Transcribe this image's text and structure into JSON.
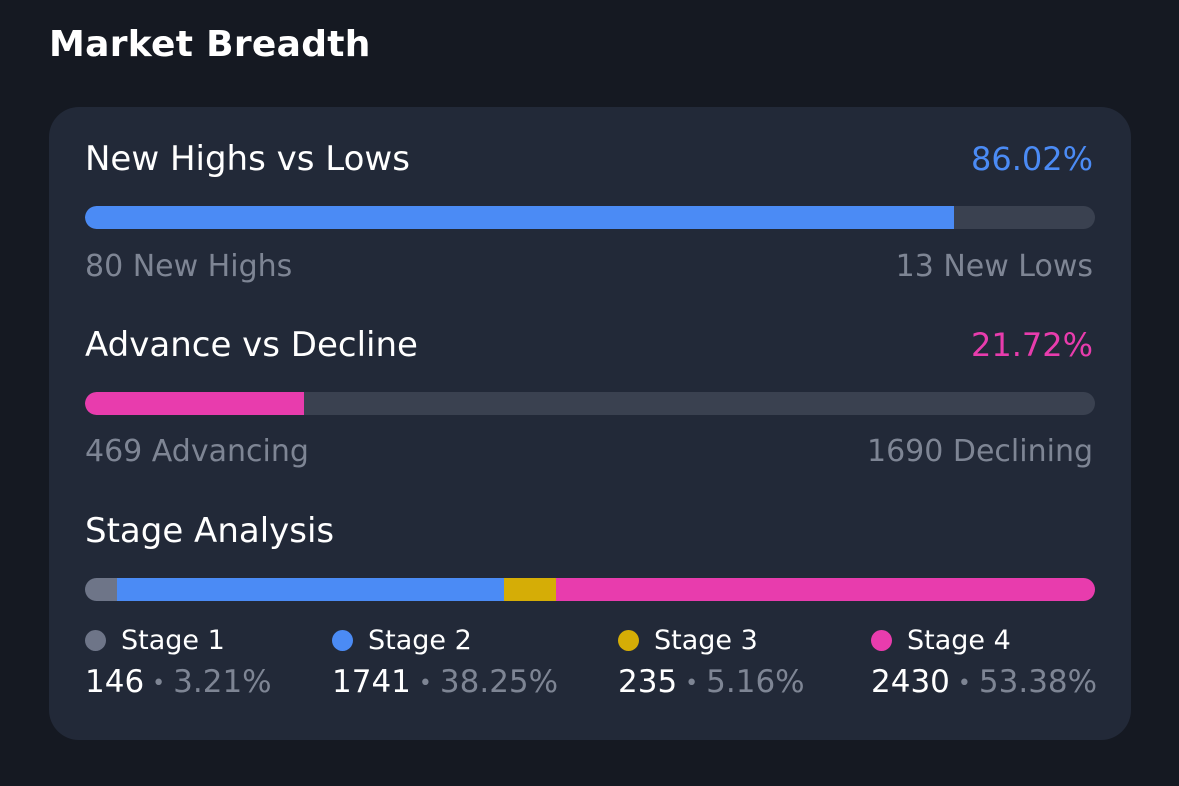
{
  "page": {
    "title": "Market Breadth"
  },
  "colors": {
    "blue": "#4b8bf5",
    "pink": "#e83cad",
    "gray": "#6e7588",
    "yellow": "#d5ad06",
    "track": "#3a4150"
  },
  "highs_lows": {
    "title": "New Highs vs Lows",
    "percent_label": "86.02%",
    "fill_percent": 86.02,
    "left_label": "80 New Highs",
    "right_label": "13 New Lows"
  },
  "advance_decline": {
    "title": "Advance vs Decline",
    "percent_label": "21.72%",
    "fill_percent": 21.72,
    "left_label": "469 Advancing",
    "right_label": "1690 Declining"
  },
  "stage_analysis": {
    "title": "Stage Analysis",
    "stages": [
      {
        "label": "Stage 1",
        "count": "146",
        "pct": "3.21%",
        "value": 3.21,
        "color": "#6e7588"
      },
      {
        "label": "Stage 2",
        "count": "1741",
        "pct": "38.25%",
        "value": 38.25,
        "color": "#4b8bf5"
      },
      {
        "label": "Stage 3",
        "count": "235",
        "pct": "5.16%",
        "value": 5.16,
        "color": "#d5ad06"
      },
      {
        "label": "Stage 4",
        "count": "2430",
        "pct": "53.38%",
        "value": 53.38,
        "color": "#e83cad"
      }
    ],
    "separator": "•"
  }
}
